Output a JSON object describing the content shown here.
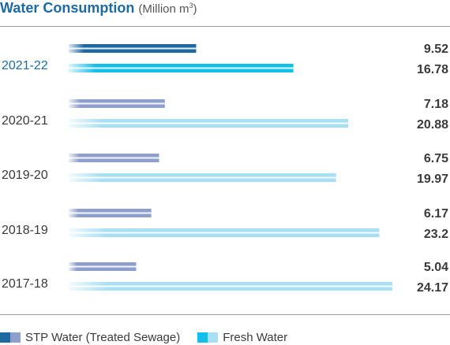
{
  "title": {
    "main": "Water Consumption",
    "unit_prefix": "(Million m",
    "unit_sup": "3",
    "unit_suffix": ")"
  },
  "colors": {
    "stp_current": "#1d6aa3",
    "stp_past": "#8e9ecd",
    "fresh_current": "#12bfe8",
    "fresh_past": "#a9dff4",
    "year_current": "#1d6aa3",
    "year_past": "#3a3a3a",
    "value_text": "#3a3a3a"
  },
  "chart_data": {
    "type": "bar",
    "orientation": "horizontal",
    "title": "Water Consumption (Million m3)",
    "categories": [
      "2021-22",
      "2020-21",
      "2019-20",
      "2018-19",
      "2017-18"
    ],
    "series": [
      {
        "name": "STP Water (Treated Sewage)",
        "values": [
          9.52,
          7.18,
          6.75,
          6.17,
          5.04
        ]
      },
      {
        "name": "Fresh Water",
        "values": [
          16.78,
          20.88,
          19.97,
          23.2,
          24.17
        ]
      }
    ],
    "value_labels": [
      [
        "9.52",
        "16.78"
      ],
      [
        "7.18",
        "20.88"
      ],
      [
        "6.75",
        "19.97"
      ],
      [
        "6.17",
        "23.2"
      ],
      [
        "5.04",
        "24.17"
      ]
    ],
    "legend_position": "bottom",
    "grid": false
  },
  "legend": [
    {
      "label": "STP Water (Treated Sewage)"
    },
    {
      "label": "Fresh Water"
    }
  ]
}
